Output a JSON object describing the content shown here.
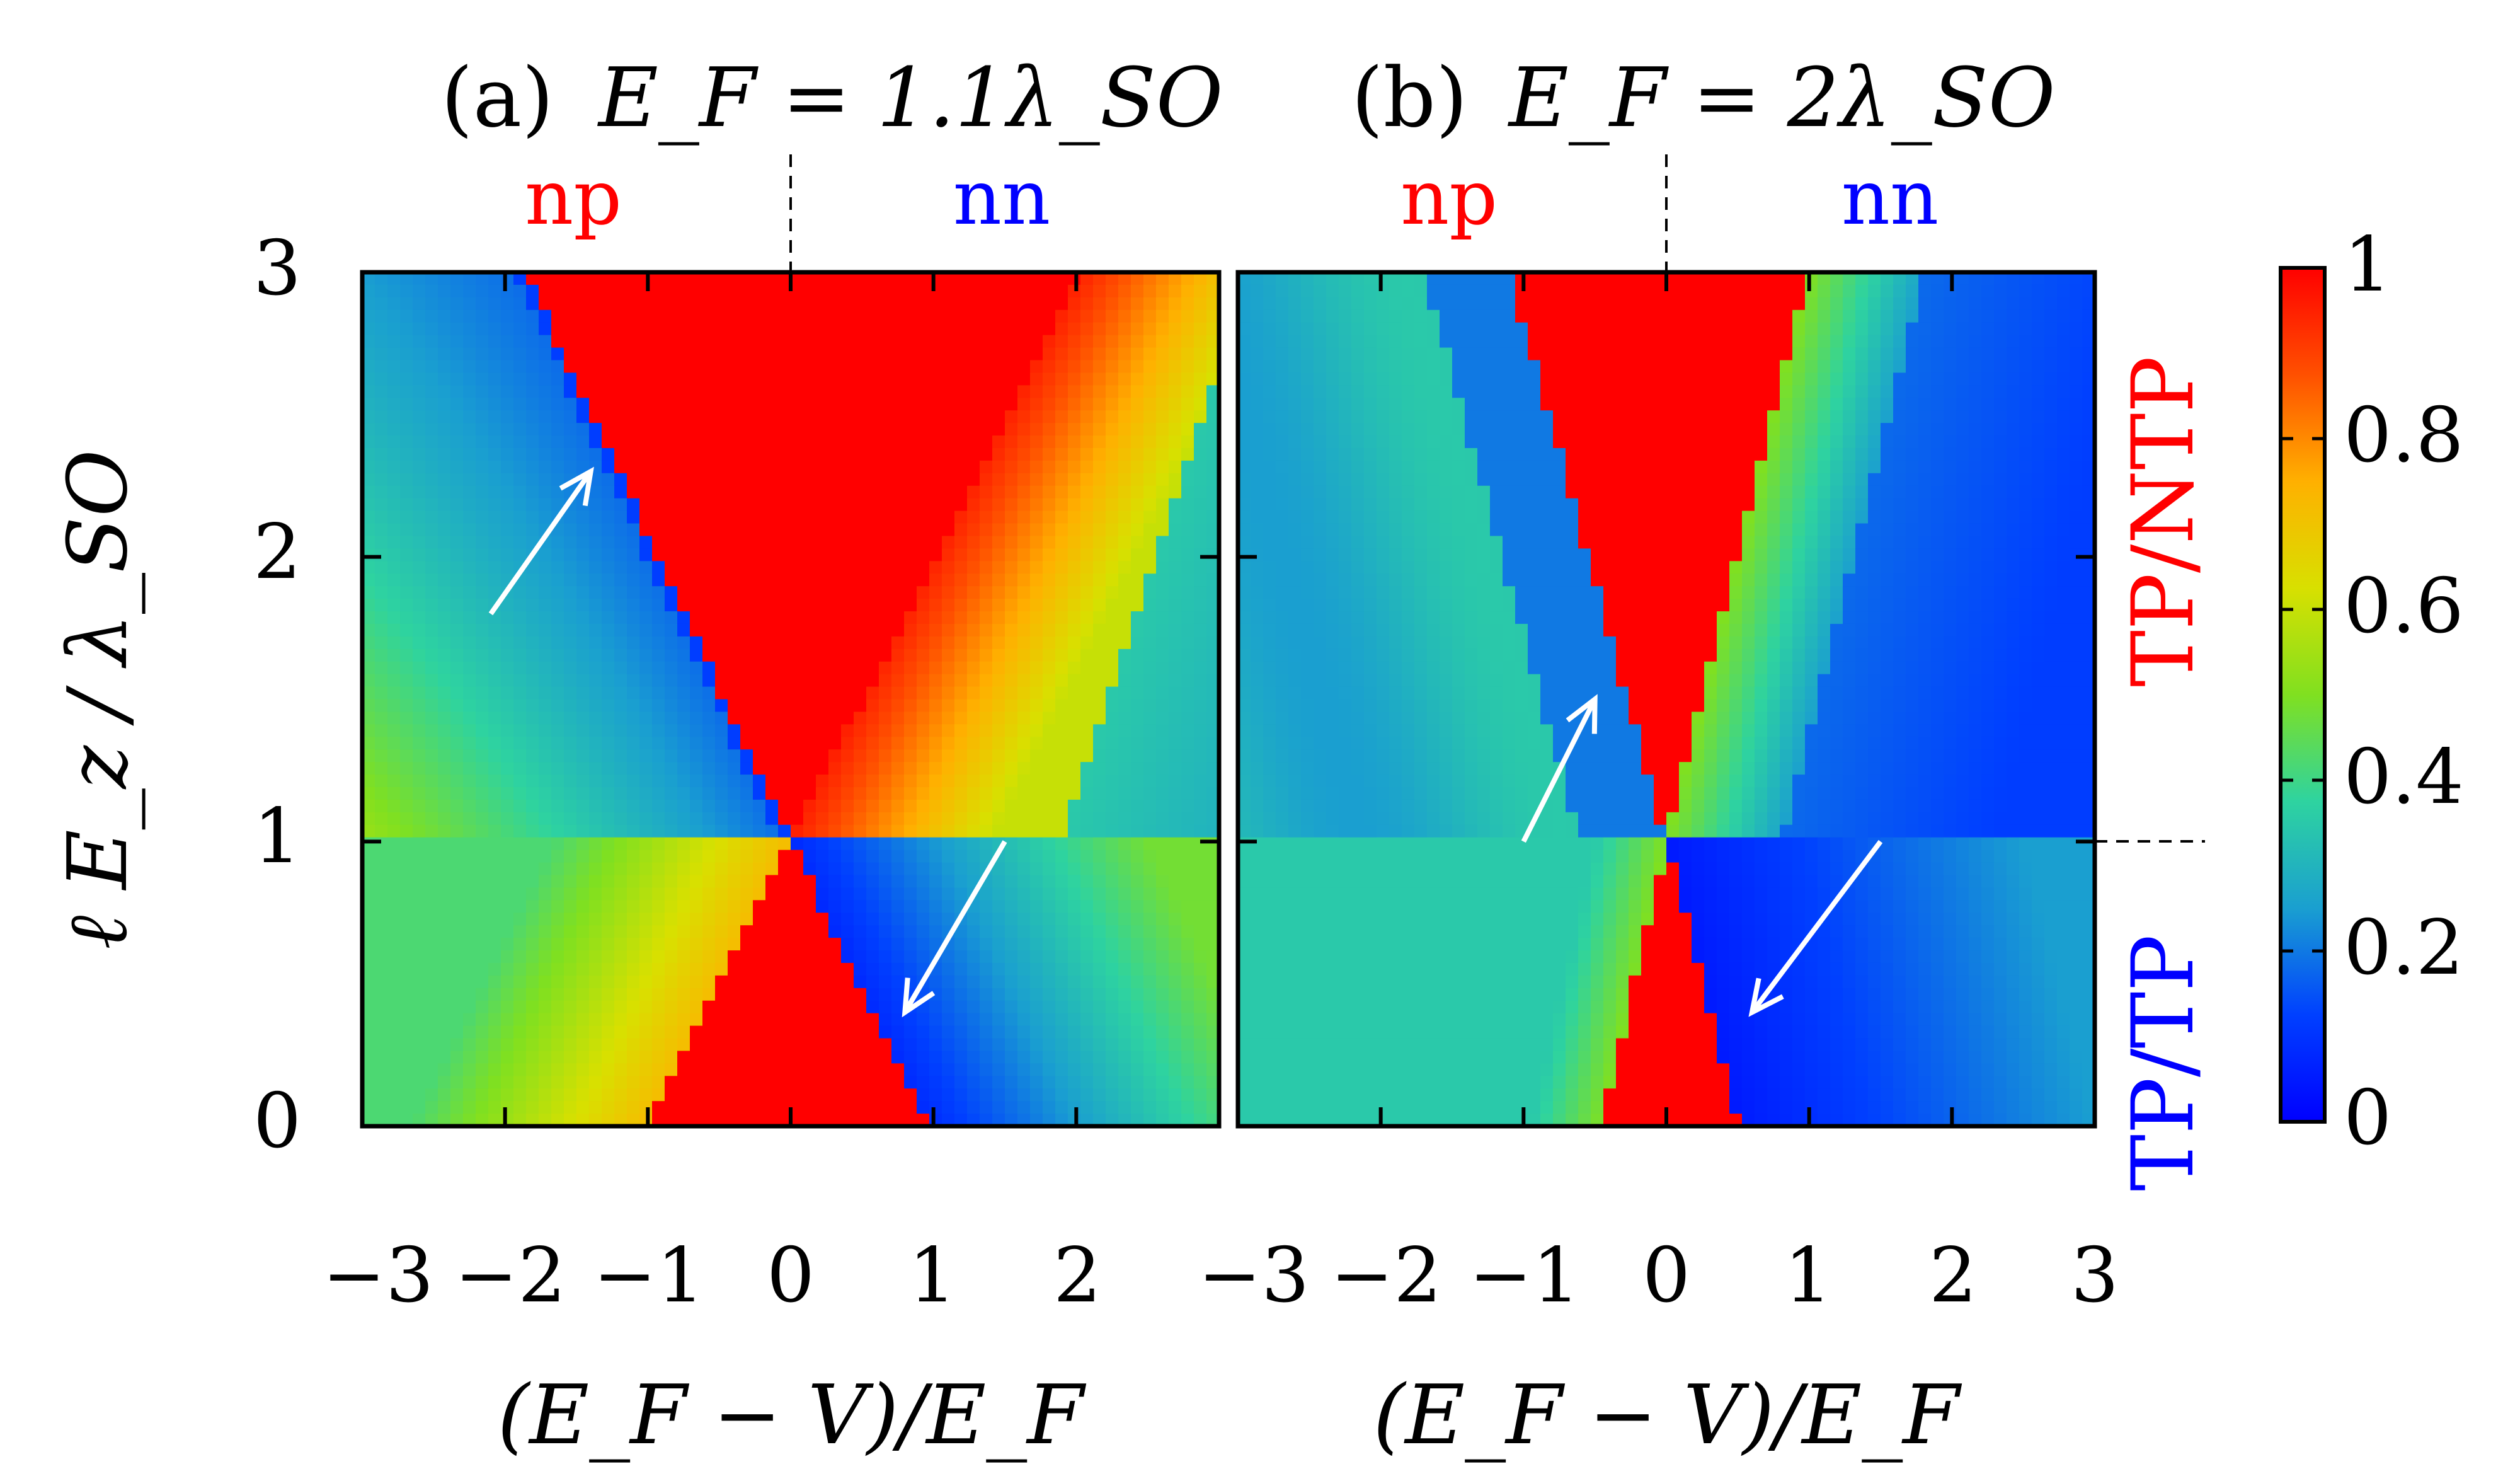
{
  "colors": {
    "np_label": "#ff0000",
    "nn_label": "#0000ff",
    "tp_ntp_label": "#ff0000",
    "tp_tp_label": "#0000ff",
    "arrow": "#ffffff",
    "frame": "#000000"
  },
  "colormap": {
    "name": "jet",
    "stops": [
      {
        "v": 0.0,
        "c": "#0000ff"
      },
      {
        "v": 0.125,
        "c": "#0040ff"
      },
      {
        "v": 0.25,
        "c": "#1a9fd0"
      },
      {
        "v": 0.375,
        "c": "#2ed3a0"
      },
      {
        "v": 0.5,
        "c": "#80e020"
      },
      {
        "v": 0.625,
        "c": "#d8e000"
      },
      {
        "v": 0.75,
        "c": "#ffb000"
      },
      {
        "v": 0.875,
        "c": "#ff5000"
      },
      {
        "v": 1.0,
        "c": "#ff0000"
      }
    ]
  },
  "figure": {
    "ylabel": "ℓ E_z / λ_SO",
    "y_ticks": [
      "0",
      "1",
      "2",
      "3"
    ],
    "region_top": "TP/NTP",
    "region_bottom": "TP/TP",
    "colorbar_ticks": [
      "0",
      "0.2",
      "0.4",
      "0.6",
      "0.8",
      "1"
    ]
  },
  "chart_data": [
    {
      "type": "heatmap",
      "panel": "(a)",
      "title_prefix": "(a)",
      "title_formula": "E_F = 1.1λ_SO",
      "xlabel": "(E_F − V)/E_F",
      "ylabel": "ℓ E_z / λ_SO",
      "xlim": [
        -3,
        3
      ],
      "ylim": [
        0,
        3
      ],
      "x_tick_labels": [
        "−3",
        "−2",
        "−1",
        "0",
        "1",
        "2"
      ],
      "y_tick_labels": [
        "0",
        "1",
        "2",
        "3"
      ],
      "region_left": "np",
      "region_right": "nn",
      "value_range": [
        0,
        1
      ],
      "arrows": [
        {
          "from": [
            -2.1,
            1.8
          ],
          "to": [
            -1.4,
            2.3
          ]
        },
        {
          "from": [
            1.5,
            1.0
          ],
          "to": [
            0.8,
            0.4
          ]
        }
      ],
      "features": [
        {
          "description": "red cone",
          "apex": [
            0,
            1
          ],
          "value": 1.0
        },
        {
          "description": "sharp line from (-1.85,3) through (0,1) to (0.95,0)",
          "value": 0.2
        }
      ]
    },
    {
      "type": "heatmap",
      "panel": "(b)",
      "title_prefix": "(b)",
      "title_formula": "E_F = 2λ_SO",
      "xlabel": "(E_F − V)/E_F",
      "ylabel": "ℓ E_z / λ_SO",
      "xlim": [
        -3,
        3
      ],
      "ylim": [
        0,
        3
      ],
      "x_tick_labels": [
        "−3",
        "−2",
        "−1",
        "0",
        "1",
        "2",
        "3"
      ],
      "y_tick_labels": [
        "0",
        "1",
        "2",
        "3"
      ],
      "region_left": "np",
      "region_right": "nn",
      "value_range": [
        0,
        1
      ],
      "arrows": [
        {
          "from": [
            -1.0,
            1.0
          ],
          "to": [
            -0.5,
            1.5
          ]
        },
        {
          "from": [
            1.5,
            1.0
          ],
          "to": [
            0.6,
            0.4
          ]
        }
      ],
      "features": [
        {
          "description": "red cone",
          "apex": [
            0,
            1
          ],
          "value": 1.0
        },
        {
          "description": "sharp line from (-1.0,3) through (0,1) to (0.5,0)",
          "value": 0.2
        }
      ]
    }
  ],
  "colorbar": {
    "ticks": [
      0,
      0.2,
      0.4,
      0.6,
      0.8,
      1.0
    ],
    "tick_labels": [
      "0",
      "0.2",
      "0.4",
      "0.6",
      "0.8",
      "1"
    ]
  }
}
